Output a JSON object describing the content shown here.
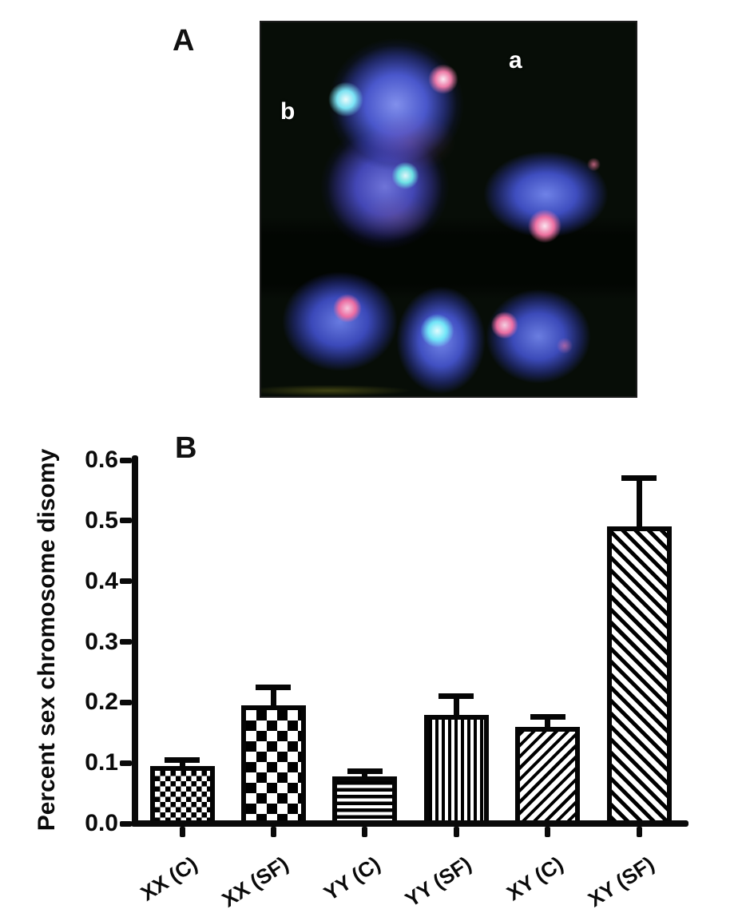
{
  "figure": {
    "panel_a": {
      "label": "A",
      "marker_a": "a",
      "marker_b": "b",
      "colors": {
        "background": "#070d07",
        "nuclei_blue": "#5a6ce8",
        "red_signal": "#ff6a9a",
        "green_signal": "#6ef0e8",
        "marker_text": "#ffffff"
      }
    },
    "panel_b": {
      "label": "B"
    }
  },
  "chart_data": {
    "type": "bar",
    "title": "",
    "xlabel": "",
    "ylabel": "Percent sex chromosome disomy",
    "ylim": [
      0,
      0.6
    ],
    "ytick_step": 0.1,
    "yticks": [
      "0.0",
      "0.1",
      "0.2",
      "0.3",
      "0.4",
      "0.5",
      "0.6"
    ],
    "categories": [
      "XX (C)",
      "XX (SF)",
      "YY (C)",
      "YY (SF)",
      "XY (C)",
      "XY (SF)"
    ],
    "values": [
      0.095,
      0.195,
      0.078,
      0.18,
      0.16,
      0.49
    ],
    "errors_plus": [
      0.01,
      0.03,
      0.009,
      0.03,
      0.016,
      0.08
    ],
    "error_bars": "upper",
    "bar_patterns": [
      "checker-fine",
      "checker-coarse",
      "horizontal-stripes",
      "vertical-stripes",
      "diagonal-up-stripes",
      "diagonal-down-stripes"
    ],
    "bar_outline_color": "#050505",
    "bar_background": "#ffffff",
    "axis_color": "#0a0a0a",
    "grid": false,
    "legend_position": "none"
  }
}
